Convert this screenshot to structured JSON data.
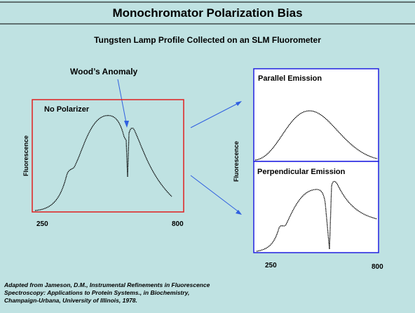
{
  "header": {
    "title": "Monochromator Polarization Bias",
    "subtitle": "Tungsten Lamp Profile Collected on an SLM Fluorometer"
  },
  "annotation": "Wood’s Anomaly",
  "left_panel": {
    "label": "No Polarizer",
    "y_label": "Fluorescence",
    "x_start": "250",
    "x_end": "800"
  },
  "right_panel": {
    "top_label": "Parallel Emission",
    "bottom_label": "Perpendicular Emission",
    "y_label": "Fluorescence",
    "x_start": "250",
    "x_end": "800"
  },
  "citation": [
    "Adapted from Jameson, D.M., Instrumental Refinements in Fluorescence",
    "Spectroscopy: Applications to Protein Systems., in Biochemistry,",
    "Champaign-Urbana, University of Illinois, 1978."
  ]
}
